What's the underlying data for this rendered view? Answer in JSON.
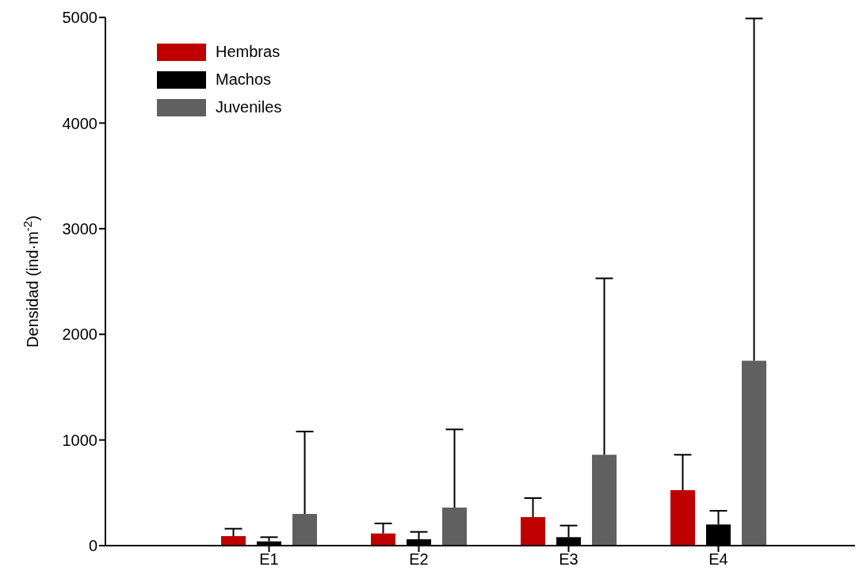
{
  "chart_data": {
    "type": "bar",
    "ylabel": "Densidad (ind·m$^{-2}$)",
    "categories": [
      "E1",
      "E2",
      "E3",
      "E4"
    ],
    "series": [
      {
        "name": "Hembras",
        "color": "#c00000",
        "values": [
          90,
          115,
          270,
          525
        ],
        "errors": [
          [
            90,
            160
          ],
          [
            115,
            210
          ],
          [
            270,
            450
          ],
          [
            525,
            860
          ]
        ]
      },
      {
        "name": "Machos",
        "color": "#000000",
        "values": [
          40,
          60,
          80,
          200
        ],
        "errors": [
          [
            40,
            80
          ],
          [
            60,
            130
          ],
          [
            80,
            190
          ],
          [
            200,
            330
          ]
        ]
      },
      {
        "name": "Juveniles",
        "color": "#606060",
        "values": [
          300,
          360,
          860,
          1750
        ],
        "errors": [
          [
            300,
            1080
          ],
          [
            360,
            1100
          ],
          [
            860,
            2530
          ],
          [
            1750,
            4990
          ]
        ]
      }
    ],
    "ylim": [
      0,
      5000
    ],
    "yticks": [
      0,
      1000,
      2000,
      3000,
      4000,
      5000
    ],
    "grid": false,
    "legend": "top left"
  }
}
